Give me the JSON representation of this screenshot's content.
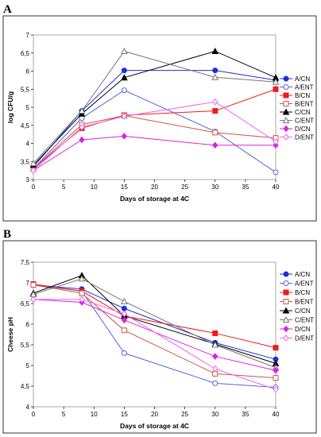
{
  "panels": {
    "a": {
      "label": "A"
    },
    "b": {
      "label": "B"
    }
  },
  "chart_data": [
    {
      "type": "line",
      "panel": "A",
      "xlabel": "Days of storage at 4C",
      "ylabel": "log CFU/g",
      "x": [
        0,
        8,
        15,
        30,
        40
      ],
      "xlim": [
        0,
        40
      ],
      "xticks": [
        0,
        5,
        10,
        15,
        20,
        25,
        30,
        35,
        40
      ],
      "ylim": [
        3,
        7
      ],
      "yticks": [
        "3",
        "3,5",
        "4",
        "4,5",
        "5",
        "5,5",
        "6",
        "6,5",
        "7"
      ],
      "ytick_values": [
        3,
        3.5,
        4,
        4.5,
        5,
        5.5,
        6,
        6.5,
        7
      ],
      "legend_position": "right",
      "grid": false,
      "series": [
        {
          "name": "A/CN",
          "color": "#1f2fd6",
          "marker": "circle-filled",
          "values": [
            3.35,
            4.9,
            6.02,
            6.02,
            5.75
          ]
        },
        {
          "name": "A/ENT",
          "color": "#5566dd",
          "marker": "circle-open",
          "values": [
            3.3,
            4.7,
            5.47,
            4.33,
            3.2
          ]
        },
        {
          "name": "B/CN",
          "color": "#ee1c1c",
          "marker": "square-filled",
          "values": [
            3.3,
            4.42,
            4.78,
            4.9,
            5.5
          ]
        },
        {
          "name": "B/ENT",
          "color": "#cc5544",
          "marker": "square-open",
          "values": [
            3.3,
            4.52,
            4.77,
            4.3,
            4.15
          ]
        },
        {
          "name": "C/CN",
          "color": "#000000",
          "marker": "triangle-filled",
          "values": [
            3.4,
            4.82,
            5.82,
            6.55,
            5.82
          ]
        },
        {
          "name": "C/ENT",
          "color": "#777777",
          "marker": "triangle-open",
          "values": [
            3.45,
            4.9,
            6.55,
            5.83,
            5.7
          ]
        },
        {
          "name": "D/CN",
          "color": "#dd22dd",
          "marker": "diamond-filled",
          "values": [
            3.25,
            4.1,
            4.2,
            3.95,
            3.95
          ]
        },
        {
          "name": "D/ENT",
          "color": "#ee66ee",
          "marker": "diamond-open",
          "values": [
            3.25,
            4.45,
            4.75,
            5.15,
            4.05
          ]
        }
      ]
    },
    {
      "type": "line",
      "panel": "B",
      "xlabel": "Days of storage at 4C",
      "ylabel": "Cheese pH",
      "x": [
        0,
        8,
        15,
        30,
        40
      ],
      "xlim": [
        0,
        40
      ],
      "xticks": [
        0,
        5,
        10,
        15,
        20,
        25,
        30,
        35,
        40
      ],
      "ylim": [
        4,
        7.5
      ],
      "yticks": [
        "4",
        "4,5",
        "5",
        "5,5",
        "6",
        "6,5",
        "7",
        "7,5"
      ],
      "ytick_values": [
        4,
        4.5,
        5,
        5.5,
        6,
        6.5,
        7,
        7.5
      ],
      "legend_position": "right",
      "grid": false,
      "series": [
        {
          "name": "A/CN",
          "color": "#1f2fd6",
          "marker": "circle-filled",
          "values": [
            6.95,
            6.85,
            6.38,
            5.55,
            5.15
          ]
        },
        {
          "name": "A/ENT",
          "color": "#5566dd",
          "marker": "circle-open",
          "values": [
            6.95,
            6.8,
            5.3,
            4.57,
            4.47
          ]
        },
        {
          "name": "B/CN",
          "color": "#ee1c1c",
          "marker": "square-filled",
          "values": [
            6.97,
            6.8,
            6.2,
            5.78,
            5.43
          ]
        },
        {
          "name": "B/ENT",
          "color": "#cc5544",
          "marker": "square-open",
          "values": [
            6.95,
            6.75,
            5.85,
            4.8,
            4.7
          ]
        },
        {
          "name": "C/CN",
          "color": "#000000",
          "marker": "triangle-filled",
          "values": [
            6.75,
            7.18,
            6.2,
            5.52,
            5.05
          ]
        },
        {
          "name": "C/ENT",
          "color": "#777777",
          "marker": "triangle-open",
          "values": [
            6.72,
            7.1,
            6.55,
            5.5,
            4.95
          ]
        },
        {
          "name": "D/CN",
          "color": "#dd22dd",
          "marker": "diamond-filled",
          "values": [
            6.6,
            6.53,
            6.1,
            5.22,
            4.88
          ]
        },
        {
          "name": "D/ENT",
          "color": "#ee66ee",
          "marker": "diamond-open",
          "values": [
            6.6,
            6.6,
            6.25,
            4.92,
            4.42
          ]
        }
      ]
    }
  ]
}
